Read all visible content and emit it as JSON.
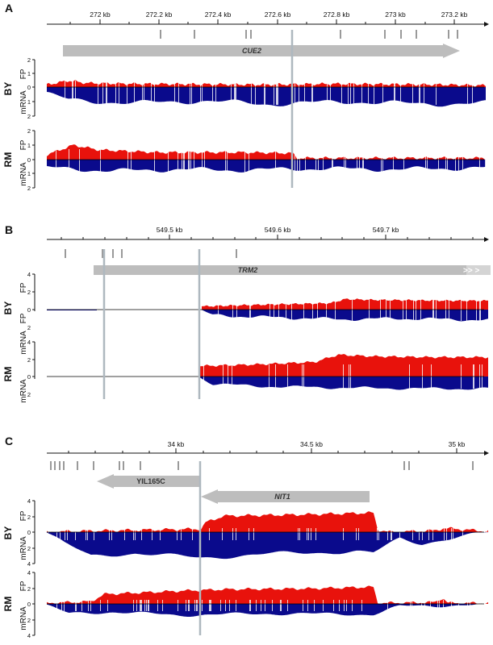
{
  "colors": {
    "fp": "#e8120c",
    "mrna": "#0a0a8c",
    "gene": "#bdbdbd",
    "marker": "#aeb8bf",
    "tick": "#999999"
  },
  "panels": [
    {
      "id": "A",
      "strains": [
        "BY",
        "RM"
      ],
      "ticks": [
        "272 kb",
        "272.2 kb",
        "272.4 kb",
        "272.6 kb",
        "272.8 kb",
        "273 kb",
        "273.2 kb"
      ],
      "genes": [
        {
          "name": "CUE2",
          "strand": "+"
        }
      ],
      "fp_axis": [
        "2",
        "1",
        "0"
      ],
      "mrna_axis": [
        "1",
        "2"
      ]
    },
    {
      "id": "B",
      "strains": [
        "BY",
        "RM"
      ],
      "ticks": [
        "549.5 kb",
        "549.6 kb",
        "549.7 kb"
      ],
      "genes": [
        {
          "name": "TRM2",
          "strand": "+"
        }
      ],
      "fp_axis": [
        "4",
        "2",
        "0"
      ],
      "mrna_axis": [
        "2"
      ]
    },
    {
      "id": "C",
      "strains": [
        "BY",
        "RM"
      ],
      "ticks": [
        "34 kb",
        "34.5 kb",
        "35 kb"
      ],
      "genes": [
        {
          "name": "YIL165C",
          "strand": "-"
        },
        {
          "name": "NIT1",
          "strand": "-"
        }
      ],
      "fp_axis": [
        "4",
        "2",
        "0"
      ],
      "mrna_axis": [
        "2",
        "4"
      ]
    }
  ],
  "track_labels": {
    "fp": "FP",
    "mrna": "mRNA"
  }
}
